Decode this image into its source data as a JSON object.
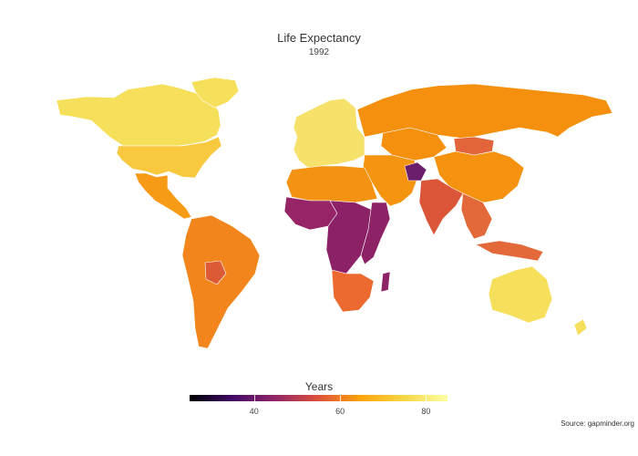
{
  "map": {
    "title": "Life Expectancy",
    "subtitle": "1992",
    "source": "Source: gapminder.org",
    "legend": {
      "title": "Years",
      "ticks": [
        {
          "value": 40,
          "label": "40"
        },
        {
          "value": 60,
          "label": "60"
        },
        {
          "value": 80,
          "label": "80"
        }
      ],
      "range": [
        25,
        85
      ],
      "palette": [
        "#000004",
        "#420a68",
        "#932667",
        "#dd513a",
        "#fca50a",
        "#f6d746",
        "#fcffa4"
      ],
      "palette_name": "inferno"
    },
    "regions": [
      {
        "name": "Canada & Greenland",
        "life_expectancy": 77.5,
        "color": "#f6df5b"
      },
      {
        "name": "United States",
        "life_expectancy": 76,
        "color": "#f8c93e"
      },
      {
        "name": "Mexico & Central America",
        "life_expectancy": 70,
        "color": "#f79a16"
      },
      {
        "name": "South America",
        "life_expectancy": 67,
        "color": "#f2851c"
      },
      {
        "name": "Bolivia",
        "life_expectancy": 58,
        "color": "#dc5a36"
      },
      {
        "name": "Western Europe",
        "life_expectancy": 77,
        "color": "#f6e16b"
      },
      {
        "name": "Russia & Central Asia",
        "life_expectancy": 67,
        "color": "#f5900f"
      },
      {
        "name": "China",
        "life_expectancy": 68,
        "color": "#f5920f"
      },
      {
        "name": "Mongolia",
        "life_expectancy": 61,
        "color": "#e2643a"
      },
      {
        "name": "Middle East",
        "life_expectancy": 67,
        "color": "#f5940f"
      },
      {
        "name": "Afghanistan",
        "life_expectancy": 41,
        "color": "#6a1e6c"
      },
      {
        "name": "India",
        "life_expectancy": 60,
        "color": "#db5638"
      },
      {
        "name": "Southeast Asia",
        "life_expectancy": 62,
        "color": "#e4693a"
      },
      {
        "name": "Australia",
        "life_expectancy": 78,
        "color": "#f6df5b"
      },
      {
        "name": "North Africa",
        "life_expectancy": 66,
        "color": "#f49214"
      },
      {
        "name": "West Africa",
        "life_expectancy": 48,
        "color": "#962467"
      },
      {
        "name": "Central Africa",
        "life_expectancy": 47,
        "color": "#8c2167"
      },
      {
        "name": "East Africa",
        "life_expectancy": 48,
        "color": "#8e2267"
      },
      {
        "name": "Southern Africa",
        "life_expectancy": 60,
        "color": "#ec6a2f"
      }
    ]
  }
}
